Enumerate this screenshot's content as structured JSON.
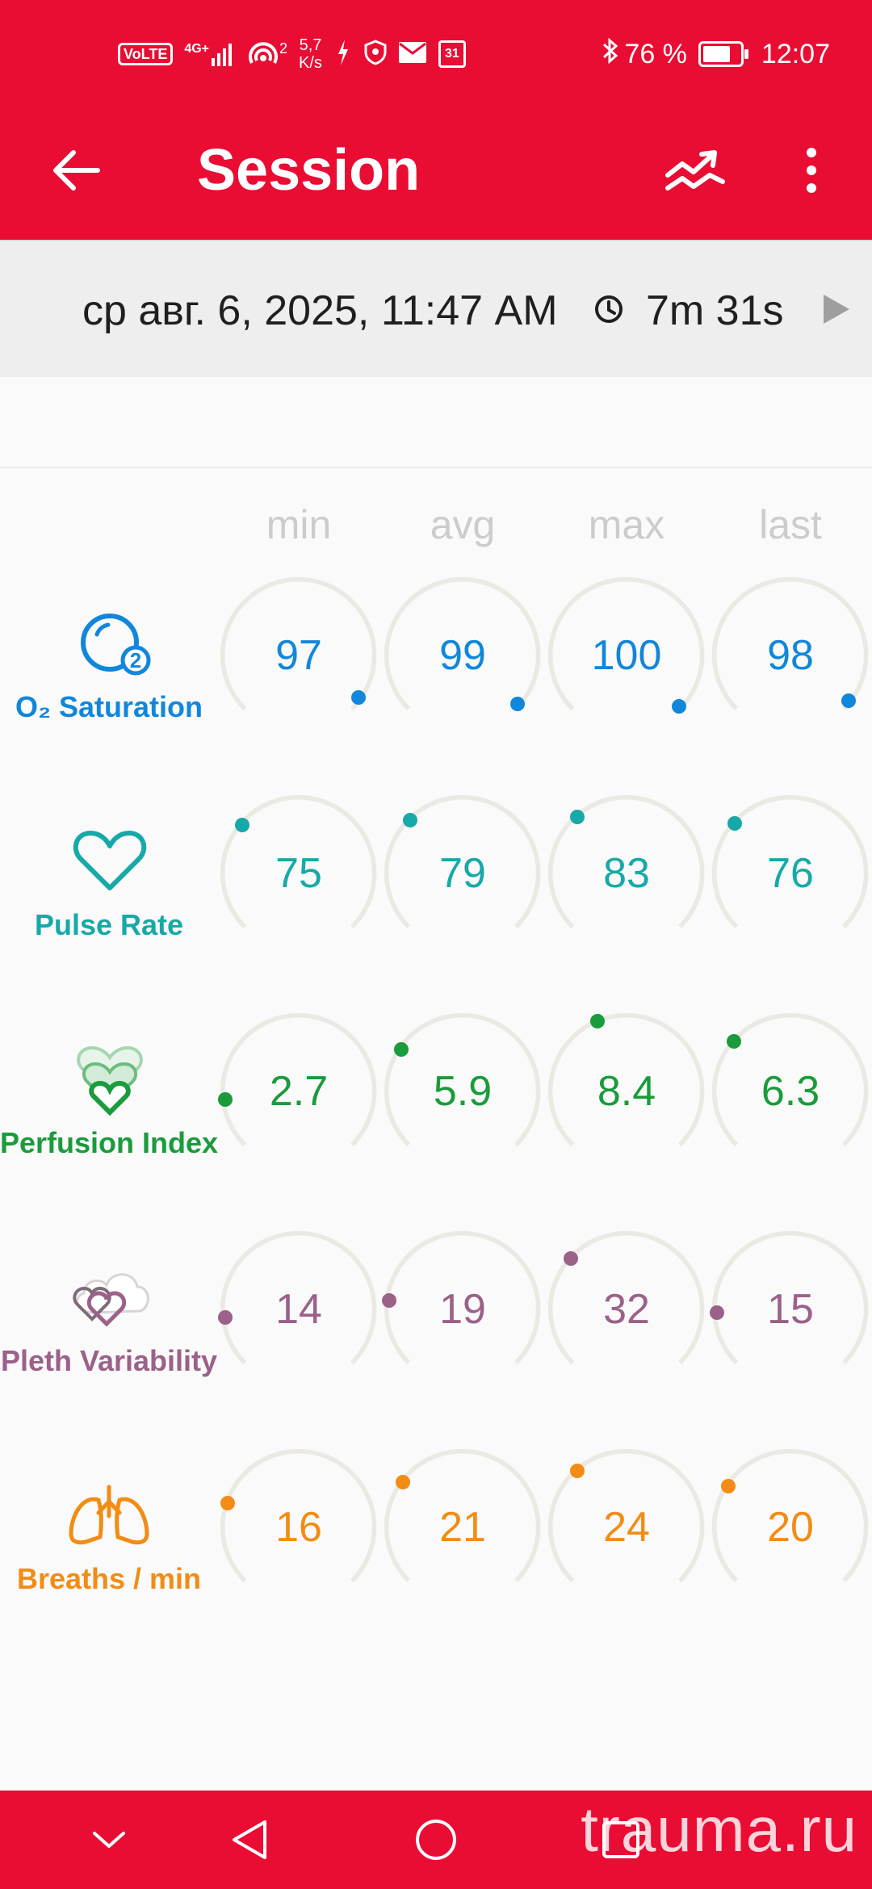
{
  "status_bar": {
    "volte": "VoLTE",
    "network": "4G+",
    "hotspot_count": "2",
    "speed_value": "5,7",
    "speed_unit": "K/s",
    "calendar_day": "31",
    "battery_percent": "76 %",
    "battery_level": 0.76,
    "time": "12:07"
  },
  "app_bar": {
    "title": "Session",
    "icons": [
      "back-arrow-icon",
      "trend-icon",
      "more-vert-icon"
    ]
  },
  "session": {
    "datetime": "ср авг. 6, 2025, 11:47 AM",
    "duration": "7m 31s"
  },
  "columns": [
    "min",
    "avg",
    "max",
    "last"
  ],
  "metrics": [
    {
      "label": "O₂ Saturation",
      "color": "#1187db",
      "icon": "o2-bubble-icon",
      "values": [
        "97",
        "99",
        "100",
        "98"
      ]
    },
    {
      "label": "Pulse Rate",
      "color": "#17a9a7",
      "icon": "heart-outline-icon",
      "values": [
        "75",
        "79",
        "83",
        "76"
      ]
    },
    {
      "label": "Perfusion Index",
      "color": "#1a9b3c",
      "icon": "layered-hearts-icon",
      "values": [
        "2.7",
        "5.9",
        "8.4",
        "6.3"
      ]
    },
    {
      "label": "Pleth Variability",
      "color": "#9b6189",
      "icon": "hearts-cloud-icon",
      "values": [
        "14",
        "19",
        "32",
        "15"
      ]
    },
    {
      "label": "Breaths / min",
      "color": "#f28c14",
      "icon": "lungs-icon",
      "values": [
        "16",
        "21",
        "24",
        "20"
      ]
    }
  ],
  "watermark": "trauma.ru",
  "colors": {
    "accent": "#e90d33",
    "track": "#ebe9e4"
  }
}
